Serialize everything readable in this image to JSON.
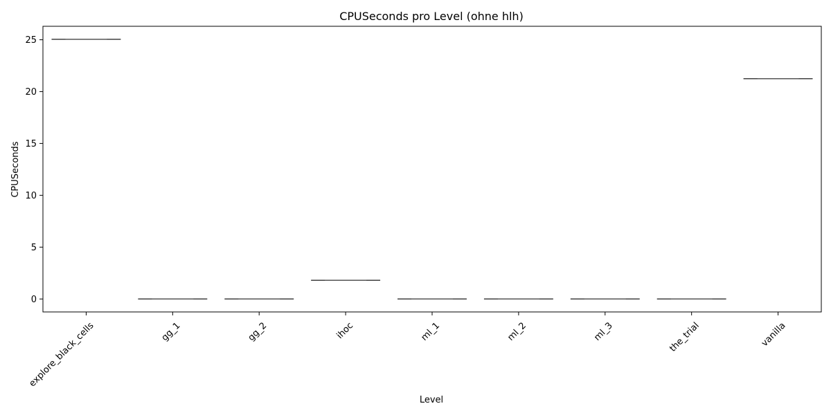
{
  "chart_data": {
    "type": "box",
    "title": "CPUSeconds pro Level (ohne hlh)",
    "xlabel": "Level",
    "ylabel": "CPUSeconds",
    "categories": [
      "explore_black_cells",
      "gg_1",
      "gg_2",
      "ihoc",
      "ml_1",
      "ml_2",
      "ml_3",
      "the_trial",
      "vanilla"
    ],
    "values": [
      25.05,
      0.0,
      0.0,
      1.8,
      0.0,
      0.0,
      0.0,
      0.0,
      21.25
    ],
    "yticks": [
      0,
      5,
      10,
      15,
      20,
      25
    ],
    "ylim": [
      -1.25,
      26.3
    ],
    "grid": false,
    "legend": "none",
    "box_color": "#3f3f3f",
    "tick_rotation_deg": 45
  }
}
